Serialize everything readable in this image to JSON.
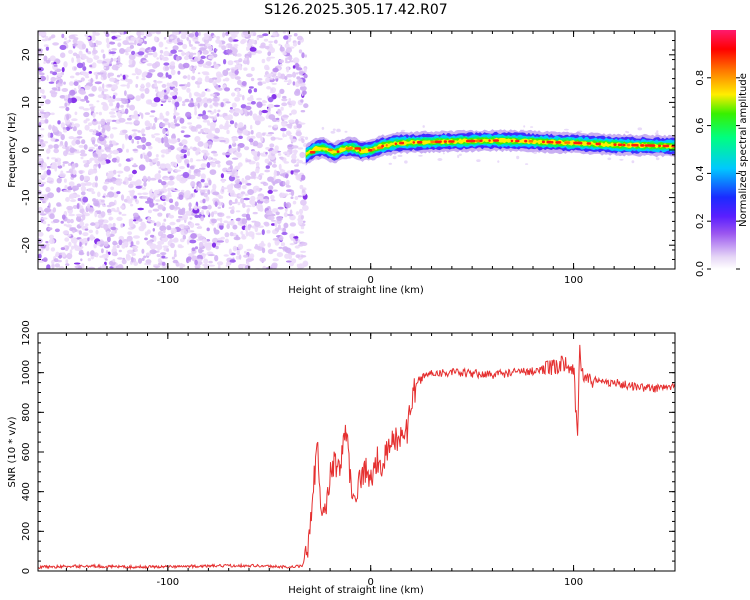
{
  "title": "S126.2025.305.17.42.R07",
  "chart_data": [
    {
      "type": "heatmap",
      "xlabel": "Height of straight line (km)",
      "ylabel": "Frequency (Hz)",
      "xlim": [
        -164,
        150
      ],
      "ylim": [
        -25,
        25
      ],
      "xticks": [
        -100,
        0,
        100
      ],
      "xtick_labels": [
        "-100",
        "0",
        "100"
      ],
      "yticks": [
        -20,
        -10,
        0,
        10,
        20
      ],
      "ytick_labels": [
        "-20",
        "-10",
        "0",
        "10",
        "20"
      ],
      "colorbar": {
        "label": "Normalized spectral amplitude",
        "range": [
          0,
          1
        ],
        "ticks": [
          0.0,
          0.2,
          0.4,
          0.6,
          0.8
        ],
        "tick_labels": [
          "0.0",
          "0.2",
          "0.4",
          "0.6",
          "0.8"
        ],
        "colors": [
          "#ffffff",
          "#e6d6f6",
          "#7a1fe8",
          "#1b1bff",
          "#00c8ff",
          "#00ff90",
          "#38f000",
          "#ffee00",
          "#ff7800",
          "#ff0000",
          "#ff1a6e"
        ]
      },
      "noise_region": {
        "x_range": [
          -164,
          -32
        ],
        "amplitude": 0.15
      },
      "signal_track": {
        "x": [
          -32,
          -27,
          -23,
          -18,
          -14,
          -9,
          -5,
          0,
          5,
          10,
          15,
          20,
          30,
          40,
          50,
          60,
          70,
          80,
          90,
          100,
          110,
          120,
          130,
          140,
          150
        ],
        "freq": [
          -1.0,
          0.3,
          0.4,
          -0.6,
          0.2,
          0.5,
          -0.2,
          0.0,
          0.8,
          1.2,
          1.5,
          1.6,
          1.7,
          1.8,
          1.9,
          2.0,
          1.9,
          1.8,
          1.6,
          1.5,
          1.3,
          1.1,
          1.0,
          0.9,
          0.8
        ],
        "peak_amplitude": 0.95
      }
    },
    {
      "type": "line",
      "xlabel": "Height of straight line (km)",
      "ylabel": "SNR (10 * v/v)",
      "xlim": [
        -164,
        150
      ],
      "ylim": [
        0,
        1200
      ],
      "xticks": [
        -100,
        0,
        100
      ],
      "xtick_labels": [
        "-100",
        "0",
        "100"
      ],
      "yticks": [
        0,
        200,
        400,
        600,
        800,
        1000,
        1200
      ],
      "ytick_labels": [
        "0",
        "200",
        "400",
        "600",
        "800",
        "1000",
        "1200"
      ],
      "color": "#e53030",
      "series": [
        {
          "name": "SNR",
          "x": [
            -164,
            -140,
            -120,
            -100,
            -80,
            -60,
            -40,
            -34,
            -32,
            -30,
            -28,
            -26,
            -25,
            -24,
            -22,
            -20,
            -18,
            -16,
            -14,
            -12,
            -10,
            -8,
            -5,
            -2,
            0,
            3,
            6,
            9,
            12,
            15,
            18,
            20,
            22,
            24,
            26,
            30,
            40,
            50,
            60,
            70,
            80,
            90,
            95,
            100,
            102,
            103,
            104,
            106,
            110,
            120,
            130,
            140,
            150
          ],
          "y": [
            20,
            25,
            20,
            22,
            25,
            28,
            20,
            25,
            60,
            200,
            450,
            620,
            400,
            300,
            350,
            480,
            560,
            500,
            600,
            720,
            460,
            380,
            470,
            520,
            450,
            560,
            540,
            620,
            660,
            690,
            700,
            860,
            920,
            960,
            980,
            1000,
            1000,
            995,
            990,
            1000,
            1010,
            1020,
            1050,
            1030,
            640,
            1150,
            1000,
            980,
            960,
            950,
            930,
            920,
            930
          ]
        }
      ]
    }
  ]
}
